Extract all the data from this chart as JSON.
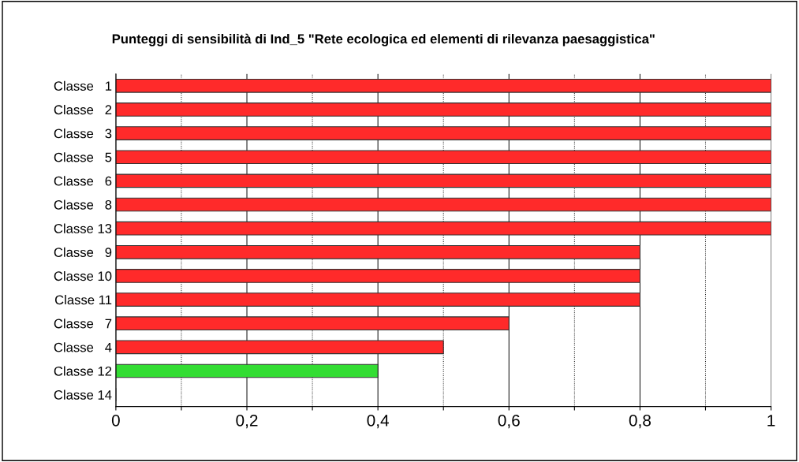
{
  "chart_data": {
    "type": "bar",
    "orientation": "horizontal",
    "title": "Punteggi di sensibilità di Ind_5 \"Rete ecologica ed elementi di rilevanza paesaggistica\"",
    "categories": [
      "Classe   1",
      "Classe   2",
      "Classe   3",
      "Classe   5",
      "Classe   6",
      "Classe   8",
      "Classe 13",
      "Classe   9",
      "Classe 10",
      "Classe 11",
      "Classe   7",
      "Classe   4",
      "Classe 12",
      "Classe 14"
    ],
    "values": [
      1,
      1,
      1,
      1,
      1,
      1,
      1,
      0.8,
      0.8,
      0.8,
      0.6,
      0.5,
      0.4,
      0
    ],
    "colors": [
      "#ff2a2a",
      "#ff2a2a",
      "#ff2a2a",
      "#ff2a2a",
      "#ff2a2a",
      "#ff2a2a",
      "#ff2a2a",
      "#ff2a2a",
      "#ff2a2a",
      "#ff2a2a",
      "#ff2a2a",
      "#ff2a2a",
      "#33dd33",
      "#333333"
    ],
    "xlim": [
      0,
      1
    ],
    "xticks": [
      0,
      {
        "value": 0.1,
        "label": null
      },
      {
        "value": 0.2,
        "label": "0,2"
      },
      {
        "value": 0.3,
        "label": null
      },
      {
        "value": 0.4,
        "label": "0,4"
      },
      {
        "value": 0.5,
        "label": null
      },
      {
        "value": 0.6,
        "label": "0,6"
      },
      {
        "value": 0.7,
        "label": null
      },
      {
        "value": 0.8,
        "label": "0,8"
      },
      {
        "value": 0.9,
        "label": null
      },
      1
    ],
    "grid": "x"
  }
}
